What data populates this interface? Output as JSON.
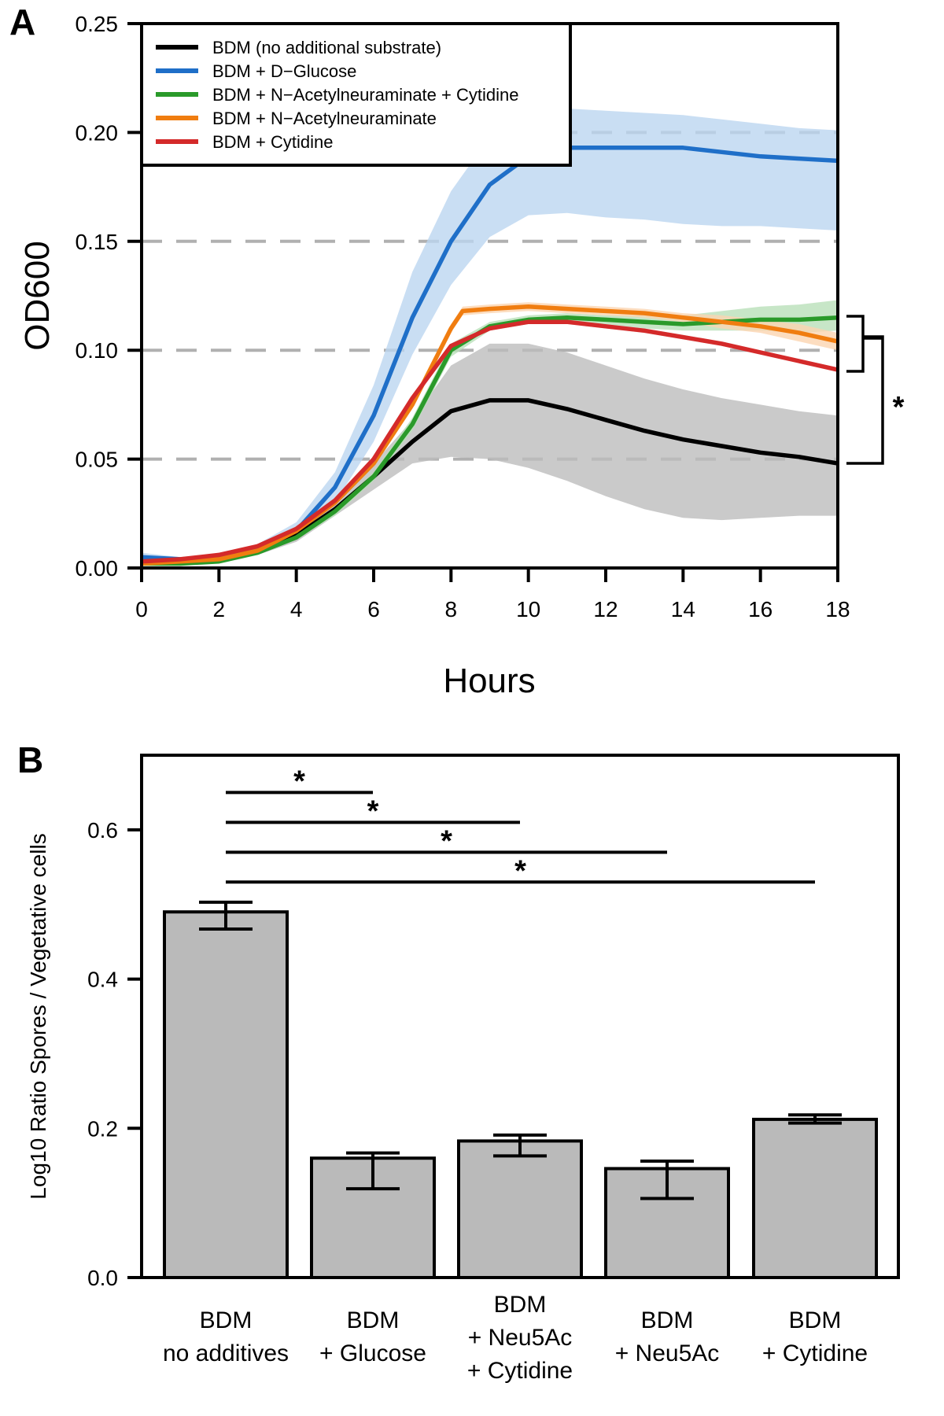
{
  "panels": [
    {
      "letter": "A",
      "chart_data": {
        "type": "line",
        "xlabel": "Hours",
        "ylabel": "OD600",
        "xlim": [
          0,
          18
        ],
        "ylim": [
          0,
          0.25
        ],
        "xticks": [
          "0",
          "2",
          "4",
          "6",
          "8",
          "10",
          "12",
          "14",
          "16",
          "18"
        ],
        "yticks": [
          "0.00",
          "0.05",
          "0.10",
          "0.15",
          "0.20",
          "0.25"
        ],
        "gridlines_y": [
          0.05,
          0.1,
          0.15,
          0.2
        ],
        "grid_style": "dashed-horizontal",
        "legend_position": "top-left",
        "annotation": "*",
        "series": [
          {
            "name": "BDM (no additional substrate)",
            "color": "#000000",
            "band_color": "#bdbdbd",
            "x": [
              0,
              1,
              2,
              3,
              4,
              5,
              6,
              7,
              8,
              9,
              10,
              11,
              12,
              13,
              14,
              15,
              16,
              17,
              18
            ],
            "y": [
              0.003,
              0.003,
              0.004,
              0.008,
              0.015,
              0.027,
              0.042,
              0.058,
              0.072,
              0.077,
              0.077,
              0.073,
              0.068,
              0.063,
              0.059,
              0.056,
              0.053,
              0.051,
              0.048
            ],
            "lower": [
              0.002,
              0.002,
              0.003,
              0.006,
              0.012,
              0.024,
              0.036,
              0.048,
              0.051,
              0.05,
              0.046,
              0.04,
              0.033,
              0.027,
              0.023,
              0.022,
              0.023,
              0.024,
              0.024
            ],
            "upper": [
              0.004,
              0.004,
              0.005,
              0.01,
              0.018,
              0.03,
              0.048,
              0.068,
              0.093,
              0.103,
              0.103,
              0.099,
              0.093,
              0.087,
              0.082,
              0.078,
              0.075,
              0.072,
              0.07
            ]
          },
          {
            "name": "BDM + D−Glucose",
            "color": "#1f6fc8",
            "band_color": "#bcd6f0",
            "x": [
              0,
              1,
              2,
              3,
              4,
              5,
              6,
              7,
              8,
              9,
              10,
              11,
              12,
              13,
              14,
              15,
              16,
              17,
              18
            ],
            "y": [
              0.005,
              0.004,
              0.005,
              0.009,
              0.017,
              0.037,
              0.07,
              0.115,
              0.15,
              0.176,
              0.189,
              0.193,
              0.193,
              0.193,
              0.193,
              0.191,
              0.189,
              0.188,
              0.187
            ],
            "lower": [
              0.003,
              0.003,
              0.004,
              0.007,
              0.014,
              0.03,
              0.058,
              0.098,
              0.13,
              0.152,
              0.162,
              0.163,
              0.161,
              0.16,
              0.158,
              0.157,
              0.157,
              0.156,
              0.155
            ],
            "upper": [
              0.007,
              0.005,
              0.006,
              0.011,
              0.021,
              0.044,
              0.084,
              0.136,
              0.173,
              0.198,
              0.209,
              0.211,
              0.21,
              0.209,
              0.208,
              0.206,
              0.204,
              0.202,
              0.201
            ]
          },
          {
            "name": "BDM + N−Acetylneuraminate + Cytidine",
            "color": "#2a9a2a",
            "band_color": "#b9e0b9",
            "x": [
              0,
              1,
              2,
              3,
              4,
              5,
              6,
              7,
              8,
              9,
              10,
              11,
              12,
              13,
              14,
              15,
              16,
              17,
              18
            ],
            "y": [
              0.002,
              0.002,
              0.003,
              0.007,
              0.014,
              0.026,
              0.042,
              0.066,
              0.1,
              0.111,
              0.114,
              0.115,
              0.114,
              0.113,
              0.112,
              0.113,
              0.114,
              0.114,
              0.115
            ],
            "lower": [
              0.002,
              0.002,
              0.003,
              0.006,
              0.013,
              0.024,
              0.04,
              0.063,
              0.097,
              0.109,
              0.112,
              0.113,
              0.112,
              0.11,
              0.109,
              0.109,
              0.109,
              0.108,
              0.109
            ],
            "upper": [
              0.002,
              0.002,
              0.003,
              0.008,
              0.015,
              0.028,
              0.044,
              0.069,
              0.103,
              0.113,
              0.116,
              0.117,
              0.116,
              0.116,
              0.116,
              0.118,
              0.12,
              0.121,
              0.123
            ]
          },
          {
            "name": "BDM + N−Acetylneuraminate",
            "color": "#f07d10",
            "band_color": "#fbd5b0",
            "x": [
              0,
              1,
              2,
              3,
              4,
              5,
              6,
              7,
              8,
              8.3,
              9,
              10,
              11,
              12,
              13,
              14,
              15,
              16,
              17,
              18
            ],
            "y": [
              0.002,
              0.003,
              0.004,
              0.008,
              0.017,
              0.03,
              0.048,
              0.075,
              0.11,
              0.118,
              0.119,
              0.12,
              0.119,
              0.118,
              0.117,
              0.115,
              0.113,
              0.111,
              0.108,
              0.104
            ],
            "lower": [
              0.002,
              0.003,
              0.004,
              0.007,
              0.016,
              0.029,
              0.047,
              0.073,
              0.108,
              0.116,
              0.117,
              0.118,
              0.117,
              0.116,
              0.115,
              0.113,
              0.11,
              0.108,
              0.104,
              0.1
            ],
            "upper": [
              0.002,
              0.003,
              0.004,
              0.009,
              0.018,
              0.031,
              0.049,
              0.077,
              0.112,
              0.12,
              0.121,
              0.122,
              0.121,
              0.12,
              0.119,
              0.117,
              0.116,
              0.114,
              0.112,
              0.108
            ]
          },
          {
            "name": "BDM + Cytidine",
            "color": "#d42a2a",
            "band_color": "#f2b8b8",
            "x": [
              0,
              1,
              2,
              3,
              4,
              5,
              6,
              7,
              8,
              9,
              10,
              11,
              12,
              13,
              14,
              15,
              16,
              17,
              18
            ],
            "y": [
              0.003,
              0.004,
              0.006,
              0.01,
              0.018,
              0.031,
              0.05,
              0.078,
              0.102,
              0.11,
              0.113,
              0.113,
              0.111,
              0.109,
              0.106,
              0.103,
              0.099,
              0.095,
              0.091
            ],
            "lower": [
              0.003,
              0.004,
              0.006,
              0.009,
              0.017,
              0.03,
              0.049,
              0.077,
              0.101,
              0.109,
              0.112,
              0.112,
              0.11,
              0.108,
              0.105,
              0.102,
              0.098,
              0.094,
              0.09
            ],
            "upper": [
              0.003,
              0.004,
              0.006,
              0.011,
              0.019,
              0.032,
              0.051,
              0.079,
              0.103,
              0.111,
              0.114,
              0.114,
              0.112,
              0.11,
              0.107,
              0.104,
              0.1,
              0.096,
              0.092
            ]
          }
        ]
      }
    },
    {
      "letter": "B",
      "chart_data": {
        "type": "bar",
        "xlabel": "",
        "ylabel": "Log10 Ratio Spores / Vegetative cells",
        "ylim": [
          0,
          0.7
        ],
        "yticks": [
          "0.0",
          "0.2",
          "0.4",
          "0.6"
        ],
        "bar_color": "#bababa",
        "categories": [
          {
            "line1": "BDM",
            "line2": "no additives",
            "line3": ""
          },
          {
            "line1": "BDM",
            "line2": "+ Glucose",
            "line3": ""
          },
          {
            "line1": "BDM",
            "line2": "+ Neu5Ac",
            "line3": "+ Cytidine"
          },
          {
            "line1": "BDM",
            "line2": "+ Neu5Ac",
            "line3": ""
          },
          {
            "line1": "BDM",
            "line2": "+ Cytidine",
            "line3": ""
          }
        ],
        "values": [
          0.49,
          0.16,
          0.183,
          0.146,
          0.212
        ],
        "error_low": [
          0.467,
          0.119,
          0.163,
          0.106,
          0.207
        ],
        "error_high": [
          0.503,
          0.167,
          0.191,
          0.156,
          0.218
        ],
        "significance": [
          {
            "from": 0,
            "to": 1,
            "y": 0.65,
            "label": "*"
          },
          {
            "from": 0,
            "to": 2,
            "y": 0.61,
            "label": "*"
          },
          {
            "from": 0,
            "to": 3,
            "y": 0.57,
            "label": "*"
          },
          {
            "from": 0,
            "to": 4,
            "y": 0.53,
            "label": "*"
          }
        ]
      }
    }
  ]
}
